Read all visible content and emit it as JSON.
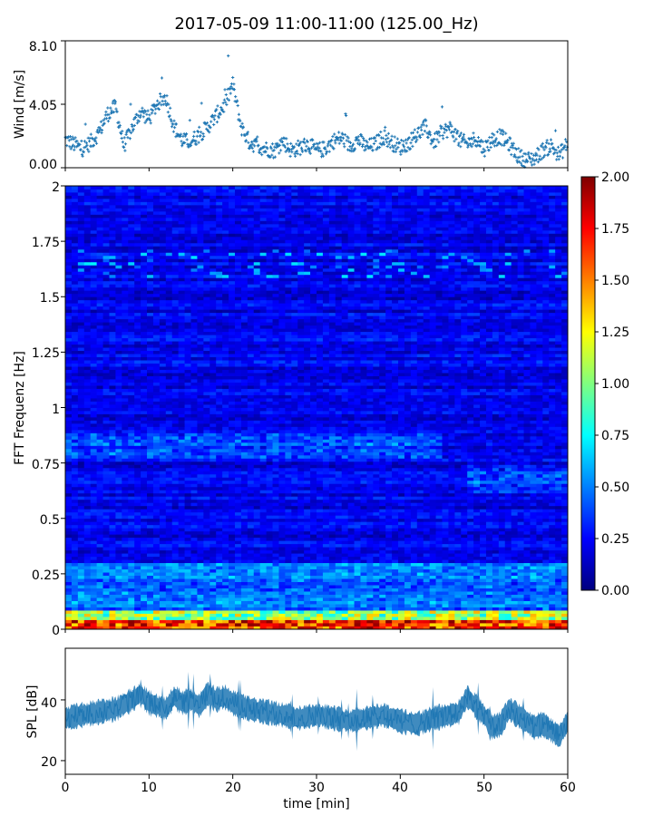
{
  "figure": {
    "title": "2017-05-09 11:00-11:00 (125.00_Hz)"
  },
  "chart_data": [
    {
      "type": "scatter",
      "panel": "wind",
      "ylabel": "Wind [m/s]",
      "yticks": [
        "0.00",
        "4.05",
        "8.10"
      ],
      "ylim": [
        0,
        8.1
      ],
      "xlim": [
        0,
        60
      ],
      "grid": false,
      "color": "#1f77b4",
      "marker": "+",
      "series": [
        {
          "x": [
            0,
            1,
            2,
            3,
            4,
            5,
            6,
            7,
            8,
            9,
            10,
            11,
            12,
            13,
            14,
            15,
            16,
            17,
            18,
            19,
            20,
            21,
            22,
            23,
            24,
            25,
            26,
            27,
            28,
            29,
            30,
            31,
            32,
            33,
            34,
            35,
            36,
            37,
            38,
            39,
            40,
            41,
            42,
            43,
            44,
            45,
            46,
            47,
            48,
            49,
            50,
            51,
            52,
            53,
            54,
            55,
            56,
            57,
            58,
            59,
            60
          ],
          "values": [
            1.8,
            1.5,
            1.2,
            1.6,
            2.2,
            3.4,
            3.9,
            1.4,
            2.6,
            3.6,
            3.1,
            4.1,
            4.5,
            2.6,
            1.7,
            1.7,
            2.1,
            2.6,
            3.3,
            4.0,
            5.3,
            2.6,
            1.6,
            1.4,
            1.2,
            1.1,
            1.7,
            1.1,
            1.3,
            1.5,
            1.1,
            1.2,
            1.7,
            1.9,
            1.4,
            1.8,
            1.3,
            1.5,
            2.0,
            1.6,
            1.3,
            1.6,
            2.1,
            2.6,
            1.6,
            2.3,
            2.5,
            1.8,
            1.5,
            1.9,
            1.2,
            1.8,
            2.0,
            1.5,
            0.8,
            0.5,
            0.6,
            1.1,
            1.4,
            0.8,
            1.6
          ]
        }
      ]
    },
    {
      "type": "heatmap",
      "panel": "spectrogram",
      "ylabel": "FFT Frequenz [Hz]",
      "ylim": [
        0,
        2
      ],
      "xlim": [
        0,
        60
      ],
      "yticks": [
        "0",
        "0.25",
        "0.5",
        "0.75",
        "1",
        "1.25",
        "1.5",
        "1.75",
        "2"
      ],
      "colormap": "jet",
      "colorbar": {
        "min": 0,
        "max": 2,
        "ticks": [
          "0.00",
          "0.25",
          "0.50",
          "0.75",
          "1.00",
          "1.25",
          "1.50",
          "1.75",
          "2.00"
        ]
      }
    },
    {
      "type": "line",
      "panel": "spl",
      "ylabel": "SPL [dB]",
      "xlabel": "time [min]",
      "xlim": [
        0,
        60
      ],
      "ylim": [
        15.5,
        57
      ],
      "xticks": [
        "0",
        "10",
        "20",
        "30",
        "40",
        "50",
        "60"
      ],
      "yticks": [
        "20",
        "40"
      ],
      "grid": false,
      "color": "#1f77b4",
      "series": [
        {
          "x": [
            0,
            2,
            4,
            6,
            8,
            9,
            10,
            11,
            12,
            13,
            14,
            15,
            16,
            17,
            18,
            19,
            20,
            22,
            24,
            26,
            28,
            30,
            32,
            34,
            36,
            38,
            40,
            42,
            44,
            46,
            47,
            48,
            49,
            50,
            51,
            52,
            53,
            54,
            55,
            56,
            57,
            58,
            59,
            60
          ],
          "values": [
            34,
            35,
            36,
            37,
            40,
            42,
            39,
            38,
            37,
            41,
            39,
            40,
            38,
            42,
            40,
            41,
            39,
            37,
            36,
            35,
            34,
            35,
            34,
            33,
            34,
            35,
            33,
            32,
            34,
            35,
            36,
            41,
            38,
            35,
            31,
            32,
            37,
            35,
            33,
            31,
            32,
            30,
            28,
            33
          ]
        }
      ]
    }
  ]
}
